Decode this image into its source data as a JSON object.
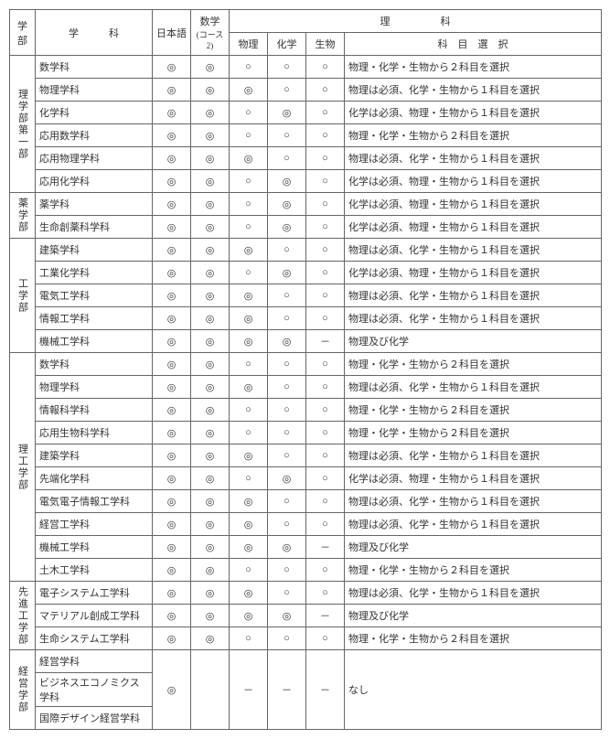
{
  "header": {
    "faculty": "学部",
    "department": "学　　　科",
    "japanese": "日本語",
    "math_top": "数学",
    "math_sub": "(コース2)",
    "science": "理　　　　　科",
    "physics": "物理",
    "chemistry": "化学",
    "biology": "生物",
    "selection": "科　目　選　択"
  },
  "symbols": {
    "req": "◎",
    "opt": "○",
    "na": "－"
  },
  "groups": [
    {
      "faculty": "理学部第一部",
      "rows": [
        {
          "dept": "数学科",
          "jp": "◎",
          "math": "◎",
          "phy": "○",
          "chem": "○",
          "bio": "○",
          "sel": "物理・化学・生物から２科目を選択"
        },
        {
          "dept": "物理学科",
          "jp": "◎",
          "math": "◎",
          "phy": "◎",
          "chem": "○",
          "bio": "○",
          "sel": "物理は必須、化学・生物から１科目を選択"
        },
        {
          "dept": "化学科",
          "jp": "◎",
          "math": "◎",
          "phy": "○",
          "chem": "◎",
          "bio": "○",
          "sel": "化学は必須、物理・生物から１科目を選択"
        },
        {
          "dept": "応用数学科",
          "jp": "◎",
          "math": "◎",
          "phy": "○",
          "chem": "○",
          "bio": "○",
          "sel": "物理・化学・生物から２科目を選択"
        },
        {
          "dept": "応用物理学科",
          "jp": "◎",
          "math": "◎",
          "phy": "◎",
          "chem": "○",
          "bio": "○",
          "sel": "物理は必須、化学・生物から１科目を選択"
        },
        {
          "dept": "応用化学科",
          "jp": "◎",
          "math": "◎",
          "phy": "○",
          "chem": "◎",
          "bio": "○",
          "sel": "化学は必須、物理・生物から１科目を選択"
        }
      ]
    },
    {
      "faculty": "薬学部",
      "rows": [
        {
          "dept": "薬学科",
          "jp": "◎",
          "math": "◎",
          "phy": "○",
          "chem": "◎",
          "bio": "○",
          "sel": "化学は必須、物理・生物から１科目を選択"
        },
        {
          "dept": "生命創薬科学科",
          "jp": "◎",
          "math": "◎",
          "phy": "○",
          "chem": "◎",
          "bio": "○",
          "sel": "化学は必須、物理・生物から１科目を選択"
        }
      ]
    },
    {
      "faculty": "工学部",
      "rows": [
        {
          "dept": "建築学科",
          "jp": "◎",
          "math": "◎",
          "phy": "◎",
          "chem": "○",
          "bio": "○",
          "sel": "物理は必須、化学・生物から１科目を選択"
        },
        {
          "dept": "工業化学科",
          "jp": "◎",
          "math": "◎",
          "phy": "○",
          "chem": "◎",
          "bio": "○",
          "sel": "化学は必須、物理・生物から１科目を選択"
        },
        {
          "dept": "電気工学科",
          "jp": "◎",
          "math": "◎",
          "phy": "◎",
          "chem": "○",
          "bio": "○",
          "sel": "物理は必須、化学・生物から１科目を選択"
        },
        {
          "dept": "情報工学科",
          "jp": "◎",
          "math": "◎",
          "phy": "◎",
          "chem": "○",
          "bio": "○",
          "sel": "物理は必須、化学・生物から１科目を選択"
        },
        {
          "dept": "機械工学科",
          "jp": "◎",
          "math": "◎",
          "phy": "◎",
          "chem": "◎",
          "bio": "－",
          "sel": "物理及び化学"
        }
      ]
    },
    {
      "faculty": "理工学部",
      "rows": [
        {
          "dept": "数学科",
          "jp": "◎",
          "math": "◎",
          "phy": "○",
          "chem": "○",
          "bio": "○",
          "sel": "物理・化学・生物から２科目を選択"
        },
        {
          "dept": "物理学科",
          "jp": "◎",
          "math": "◎",
          "phy": "◎",
          "chem": "○",
          "bio": "○",
          "sel": "物理は必須、化学・生物から１科目を選択"
        },
        {
          "dept": "情報科学科",
          "jp": "◎",
          "math": "◎",
          "phy": "○",
          "chem": "○",
          "bio": "○",
          "sel": "物理・化学・生物から２科目を選択"
        },
        {
          "dept": "応用生物科学科",
          "jp": "◎",
          "math": "◎",
          "phy": "○",
          "chem": "○",
          "bio": "○",
          "sel": "物理・化学・生物から２科目を選択"
        },
        {
          "dept": "建築学科",
          "jp": "◎",
          "math": "◎",
          "phy": "◎",
          "chem": "○",
          "bio": "○",
          "sel": "物理は必須、化学・生物から１科目を選択"
        },
        {
          "dept": "先端化学科",
          "jp": "◎",
          "math": "◎",
          "phy": "○",
          "chem": "◎",
          "bio": "○",
          "sel": "化学は必須、物理・生物から１科目を選択"
        },
        {
          "dept": "電気電子情報工学科",
          "jp": "◎",
          "math": "◎",
          "phy": "◎",
          "chem": "○",
          "bio": "○",
          "sel": "物理は必須、化学・生物から１科目を選択"
        },
        {
          "dept": "経営工学科",
          "jp": "◎",
          "math": "◎",
          "phy": "◎",
          "chem": "○",
          "bio": "○",
          "sel": "物理は必須、化学・生物から１科目を選択"
        },
        {
          "dept": "機械工学科",
          "jp": "◎",
          "math": "◎",
          "phy": "◎",
          "chem": "◎",
          "bio": "－",
          "sel": "物理及び化学"
        },
        {
          "dept": "土木工学科",
          "jp": "◎",
          "math": "◎",
          "phy": "○",
          "chem": "○",
          "bio": "○",
          "sel": "物理・化学・生物から２科目を選択"
        }
      ]
    },
    {
      "faculty": "先進工学部",
      "rows": [
        {
          "dept": "電子システム工学科",
          "jp": "◎",
          "math": "◎",
          "phy": "◎",
          "chem": "○",
          "bio": "○",
          "sel": "物理は必須、化学・生物から１科目を選択"
        },
        {
          "dept": "マテリアル創成工学科",
          "jp": "◎",
          "math": "◎",
          "phy": "◎",
          "chem": "◎",
          "bio": "－",
          "sel": "物理及び化学"
        },
        {
          "dept": "生命システム工学科",
          "jp": "◎",
          "math": "◎",
          "phy": "○",
          "chem": "○",
          "bio": "○",
          "sel": "物理・化学・生物から２科目を選択"
        }
      ]
    },
    {
      "faculty": "経営学部",
      "merged": true,
      "jp": "◎",
      "math": "",
      "phy": "－",
      "chem": "－",
      "bio": "－",
      "sel": "なし",
      "rows": [
        {
          "dept": "経営学科"
        },
        {
          "dept": "ビジネスエコノミクス学科"
        },
        {
          "dept": "国際デザイン経営学科"
        }
      ]
    }
  ]
}
